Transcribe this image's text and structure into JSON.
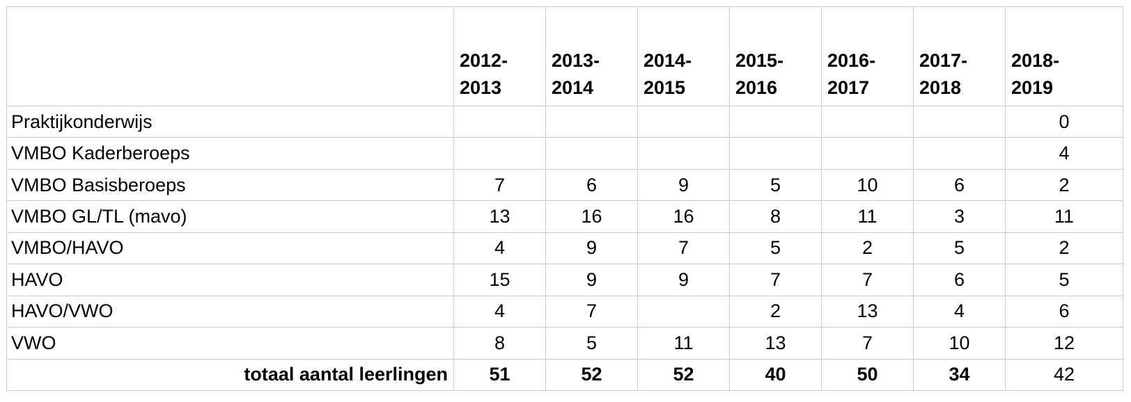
{
  "chart_data": {
    "type": "table",
    "columns": [
      "",
      "2012-\n2013",
      "2013-\n2014",
      "2014-\n2015",
      "2015-\n2016",
      "2016-\n2017",
      "2017-\n2018",
      "2018-\n2019"
    ],
    "column_lines": [
      [
        "2012-",
        "2013"
      ],
      [
        "2013-",
        "2014"
      ],
      [
        "2014-",
        "2015"
      ],
      [
        "2015-",
        "2016"
      ],
      [
        "2016-",
        "2017"
      ],
      [
        "2017-",
        "2018"
      ],
      [
        "2018-",
        "2019"
      ]
    ],
    "rows": [
      {
        "label": "Praktijkonderwijs",
        "values": [
          "",
          "",
          "",
          "",
          "",
          "",
          "0"
        ]
      },
      {
        "label": "VMBO Kaderberoeps",
        "values": [
          "",
          "",
          "",
          "",
          "",
          "",
          "4"
        ]
      },
      {
        "label": "VMBO Basisberoeps",
        "values": [
          "7",
          "6",
          "9",
          "5",
          "10",
          "6",
          "2"
        ]
      },
      {
        "label": "VMBO GL/TL (mavo)",
        "values": [
          "13",
          "16",
          "16",
          "8",
          "11",
          "3",
          "11"
        ]
      },
      {
        "label": "VMBO/HAVO",
        "values": [
          "4",
          "9",
          "7",
          "5",
          "2",
          "5",
          "2"
        ]
      },
      {
        "label": "HAVO",
        "values": [
          "15",
          "9",
          "9",
          "7",
          "7",
          "6",
          "5"
        ]
      },
      {
        "label": "HAVO/VWO",
        "values": [
          "4",
          "7",
          "",
          "2",
          "13",
          "4",
          "6"
        ]
      },
      {
        "label": "VWO",
        "values": [
          "8",
          "5",
          "11",
          "13",
          "7",
          "10",
          "12"
        ]
      }
    ],
    "total": {
      "label": "totaal aantal leerlingen",
      "values": [
        "51",
        "52",
        "52",
        "40",
        "50",
        "34",
        "42"
      ]
    },
    "border_color": "#c9c9c9"
  }
}
